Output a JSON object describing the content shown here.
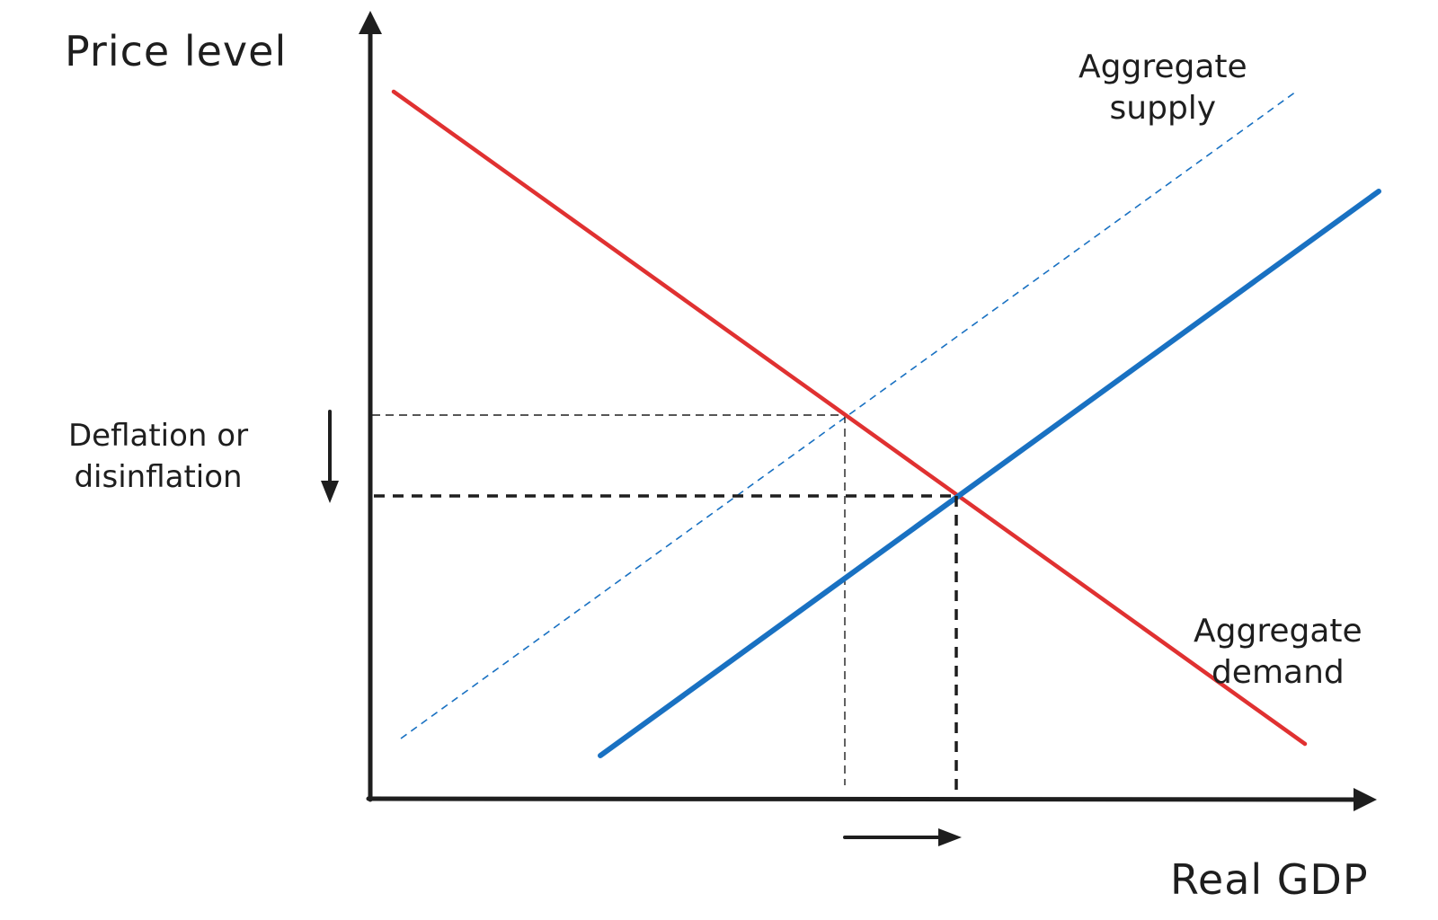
{
  "diagram": {
    "y_axis_title": "Price level",
    "x_axis_title": "Real GDP",
    "supply_label_line1": "Aggregate",
    "supply_label_line2": "supply",
    "demand_label_line1": "Aggregate",
    "demand_label_line2": "demand",
    "price_change_line1": "Deflation or",
    "price_change_line2": "disinflation"
  },
  "colors": {
    "demand": "#e03131",
    "supply": "#1971c2",
    "ink": "#1e1e1e",
    "background": "#ffffff"
  }
}
